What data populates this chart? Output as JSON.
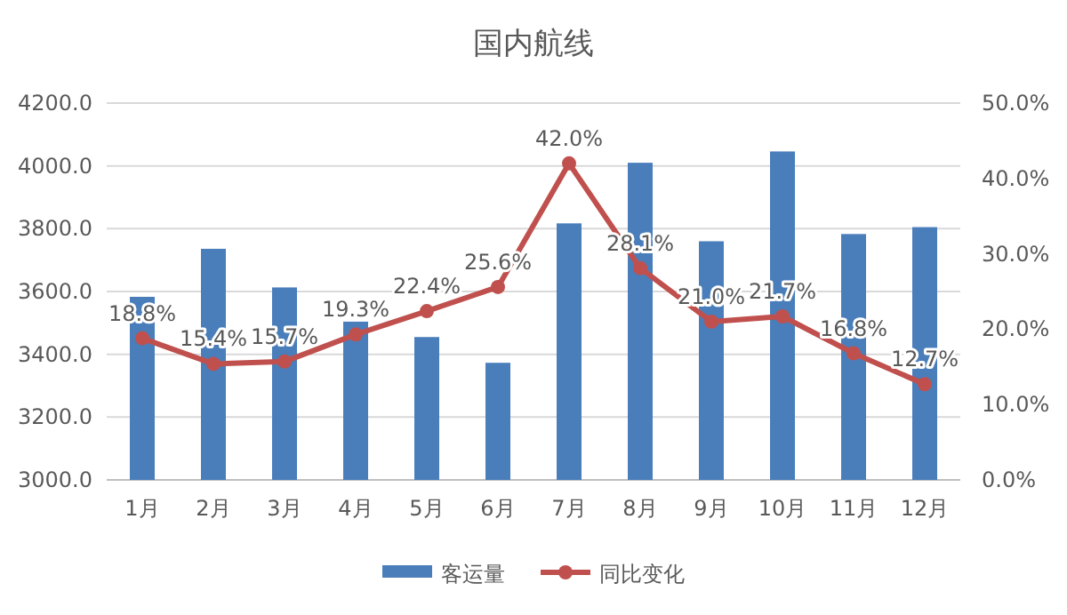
{
  "chart_data": {
    "type": "bar",
    "title": "国内航线",
    "categories": [
      "1月",
      "2月",
      "3月",
      "4月",
      "5月",
      "6月",
      "7月",
      "8月",
      "9月",
      "10月",
      "11月",
      "12月"
    ],
    "series": [
      {
        "name": "客运量",
        "color": "#4a7ebb",
        "values": [
          3583,
          3736,
          3613,
          3504,
          3455,
          3373,
          3817,
          4010,
          3760,
          4046,
          3783,
          3805
        ]
      },
      {
        "name": "同比变化",
        "type": "line",
        "axis": "y2",
        "color": "#c0504d",
        "marker": "circle",
        "values": [
          18.8,
          15.4,
          15.7,
          19.3,
          22.4,
          25.6,
          42.0,
          28.1,
          21.0,
          21.7,
          16.8,
          12.7
        ],
        "value_labels": [
          "18.8%",
          "15.4%",
          "15.7%",
          "19.3%",
          "22.4%",
          "25.6%",
          "42.0%",
          "28.1%",
          "21.0%",
          "21.7%",
          "16.8%",
          "12.7%"
        ]
      }
    ],
    "ylim": [
      3000,
      4200
    ],
    "yticks": [
      {
        "value": 3000,
        "label": "3000.0"
      },
      {
        "value": 3200,
        "label": "3200.0"
      },
      {
        "value": 3400,
        "label": "3400.0"
      },
      {
        "value": 3600,
        "label": "3600.0"
      },
      {
        "value": 3800,
        "label": "3800.0"
      },
      {
        "value": 4000,
        "label": "4000.0"
      },
      {
        "value": 4200,
        "label": "4200.0"
      }
    ],
    "y2lim": [
      0,
      50
    ],
    "y2ticks": [
      {
        "value": 0,
        "label": "0.0%"
      },
      {
        "value": 10,
        "label": "10.0%"
      },
      {
        "value": 20,
        "label": "20.0%"
      },
      {
        "value": 30,
        "label": "30.0%"
      },
      {
        "value": 40,
        "label": "40.0%"
      },
      {
        "value": 50,
        "label": "50.0%"
      }
    ],
    "grid": "y",
    "legend": "bottom"
  }
}
